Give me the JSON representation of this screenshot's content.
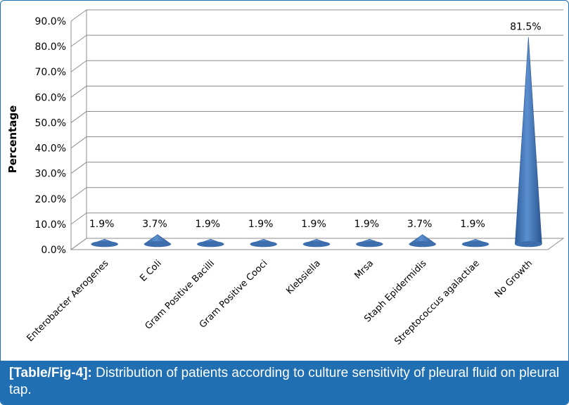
{
  "chart_data": {
    "type": "bar",
    "style": "3d-cone",
    "categories": [
      "Enterobacter Aerogenes",
      "E Coli",
      "Gram Positive Bacilli",
      "Gram Positive Cooci",
      "Klebsiella",
      "Mrsa",
      "Staph Epidermidis",
      "Streptococcus agalactiae",
      "No Growth"
    ],
    "values": [
      1.9,
      3.7,
      1.9,
      1.9,
      1.9,
      1.9,
      3.7,
      1.9,
      81.5
    ],
    "data_labels": [
      "1.9%",
      "3.7%",
      "1.9%",
      "1.9%",
      "1.9%",
      "1.9%",
      "3.7%",
      "1.9%",
      "81.5%"
    ],
    "ylabel": "Percentage",
    "xlabel": "",
    "ylim": [
      0,
      90
    ],
    "yticks": [
      "0.0%",
      "10.0%",
      "20.0%",
      "30.0%",
      "40.0%",
      "50.0%",
      "60.0%",
      "70.0%",
      "80.0%",
      "90.0%"
    ],
    "grid": true,
    "bar_color": "#4a7ebb"
  },
  "caption": {
    "tag": "[Table/Fig-4]:",
    "text": " Distribution of patients according to culture sensitivity of pleural fluid on pleural tap."
  },
  "colors": {
    "caption_bg": "#1f6fb2",
    "caption_text": "#ffffff"
  }
}
